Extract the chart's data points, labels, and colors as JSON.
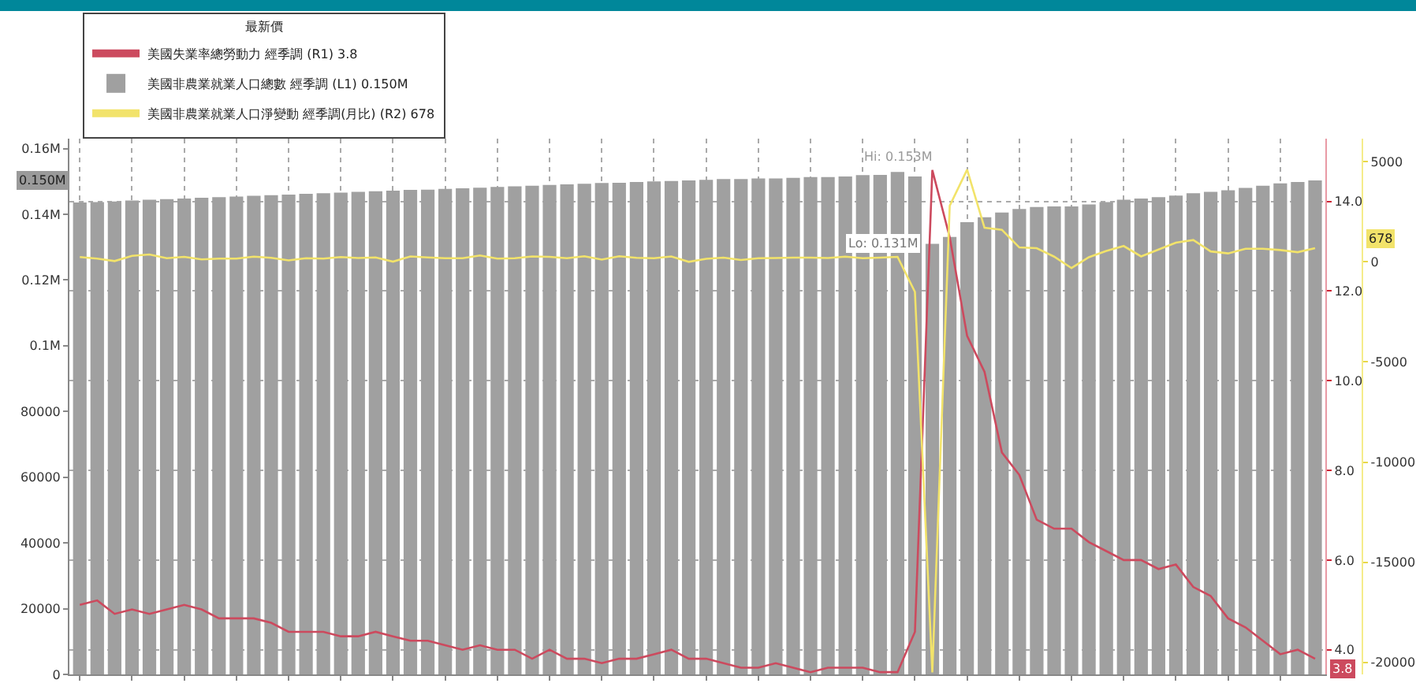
{
  "chart_data": {
    "type": "bar",
    "categories": [
      null,
      null,
      null,
      null,
      null,
      null,
      null,
      null,
      null,
      null,
      null,
      null,
      null,
      null,
      null,
      null,
      null,
      null,
      null,
      null,
      null,
      null,
      null,
      null,
      null,
      null,
      null,
      null,
      null,
      null,
      null,
      null,
      null,
      null,
      null,
      null,
      null,
      null,
      null,
      null,
      null,
      null,
      null,
      null,
      null,
      null,
      null,
      null,
      null,
      null,
      null,
      null,
      null,
      null,
      null,
      null,
      null,
      null,
      null,
      null,
      null,
      null,
      null,
      null,
      null,
      null,
      null,
      null,
      null,
      null,
      null,
      null
    ],
    "series": [
      {
        "name": "美國失業率總勞動力 經季調 (R1) 3.8",
        "type": "line",
        "axis": "y2",
        "color": "#cc4a5e",
        "values": [
          5.0,
          5.1,
          4.8,
          4.9,
          4.8,
          4.9,
          5.0,
          4.9,
          4.7,
          4.7,
          4.7,
          4.6,
          4.4,
          4.4,
          4.4,
          4.3,
          4.3,
          4.4,
          4.3,
          4.2,
          4.2,
          4.1,
          4.0,
          4.1,
          4.0,
          4.0,
          3.8,
          4.0,
          3.8,
          3.8,
          3.7,
          3.8,
          3.8,
          3.9,
          4.0,
          3.8,
          3.8,
          3.7,
          3.6,
          3.6,
          3.7,
          3.6,
          3.5,
          3.6,
          3.6,
          3.6,
          3.5,
          3.5,
          4.4,
          14.7,
          13.2,
          11.0,
          10.2,
          8.4,
          7.9,
          6.9,
          6.7,
          6.7,
          6.4,
          6.2,
          6.0,
          6.0,
          5.8,
          5.9,
          5.4,
          5.2,
          4.7,
          4.5,
          4.2,
          3.9,
          4.0,
          3.8
        ]
      },
      {
        "name": "美國非農業就業人口總數 經季調 (L1) 0.150M",
        "color": "#a0a0a0",
        "values": [
          143600,
          143700,
          143900,
          144200,
          144400,
          144600,
          144800,
          145000,
          145200,
          145400,
          145600,
          145800,
          146000,
          146200,
          146400,
          146600,
          146800,
          147000,
          147200,
          147400,
          147500,
          147700,
          147900,
          148100,
          148300,
          148500,
          148700,
          148900,
          149100,
          149300,
          149500,
          149600,
          149800,
          150000,
          150100,
          150300,
          150500,
          150700,
          150700,
          150900,
          150900,
          151100,
          151300,
          151300,
          151500,
          151900,
          152000,
          152900,
          151500,
          131000,
          133100,
          137600,
          139100,
          140500,
          141600,
          142200,
          142400,
          142400,
          143000,
          143700,
          144400,
          144800,
          145200,
          145700,
          146400,
          146800,
          147300,
          148000,
          148700,
          149400,
          149800,
          150300
        ]
      },
      {
        "name": "美國非農業就業人口淨變動 經季調(月比) (R2) 678",
        "type": "line",
        "axis": "y3",
        "color": "#f2e36a",
        "values": [
          240,
          160,
          40,
          300,
          370,
          180,
          250,
          120,
          160,
          160,
          260,
          200,
          70,
          180,
          160,
          240,
          190,
          220,
          10,
          270,
          220,
          180,
          180,
          320,
          160,
          180,
          270,
          250,
          180,
          280,
          110,
          280,
          200,
          180,
          270,
          0,
          150,
          210,
          90,
          180,
          190,
          210,
          210,
          190,
          260,
          180,
          210,
          250,
          -1500,
          -20500,
          2800,
          4600,
          1700,
          1600,
          720,
          680,
          260,
          -310,
          230,
          540,
          790,
          270,
          610,
          960,
          1090,
          520,
          420,
          650,
          650,
          590,
          480,
          678
        ]
      }
    ],
    "ylim": [
      0,
      163000
    ],
    "yticks": [
      0,
      20000,
      40000,
      60000,
      80000,
      {
        "value": 100000,
        "label": "0.1M"
      },
      {
        "value": 120000,
        "label": "0.12M"
      },
      {
        "value": 140000,
        "label": "0.14M"
      },
      {
        "value": 160000,
        "label": "0.16M"
      }
    ],
    "y2lim": [
      3.45,
      15.4
    ],
    "y2ticks": [
      {
        "value": 4,
        "label": "4.0"
      },
      {
        "value": 6,
        "label": "6.0"
      },
      {
        "value": 8,
        "label": "8.0"
      },
      {
        "value": 10,
        "label": "10.0"
      },
      {
        "value": 12,
        "label": "12.0"
      },
      {
        "value": 14,
        "label": "14.0"
      }
    ],
    "y3lim": [
      -20600,
      6150
    ],
    "y3ticks": [
      -20000,
      -15000,
      -10000,
      -5000,
      0,
      5000
    ],
    "annotations": [
      {
        "text": "Hi: 0.153M",
        "y": 152900
      },
      {
        "text": "Lo: 0.131M",
        "y": 131000
      },
      "3.8",
      "0.150M",
      "678"
    ],
    "legend": "top left",
    "legend_title": "最新價",
    "grid": true
  }
}
